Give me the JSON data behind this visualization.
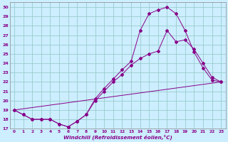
{
  "xlabel": "Windchill (Refroidissement éolien,°C)",
  "background_color": "#cceeff",
  "line_color": "#880088",
  "grid_color": "#99cccc",
  "xlim": [
    -0.5,
    23.5
  ],
  "ylim": [
    17,
    30.5
  ],
  "yticks": [
    17,
    18,
    19,
    20,
    21,
    22,
    23,
    24,
    25,
    26,
    27,
    28,
    29,
    30
  ],
  "xticks": [
    0,
    1,
    2,
    3,
    4,
    5,
    6,
    7,
    8,
    9,
    10,
    11,
    12,
    13,
    14,
    15,
    16,
    17,
    18,
    19,
    20,
    21,
    22,
    23
  ],
  "curve_upper_x": [
    0,
    1,
    2,
    3,
    4,
    5,
    6,
    7,
    8,
    9,
    10,
    11,
    12,
    13,
    14,
    15,
    16,
    17,
    18,
    19,
    20,
    21,
    22,
    23
  ],
  "curve_upper_y": [
    19,
    18.5,
    18,
    18,
    18,
    17.5,
    17.2,
    17.8,
    18.5,
    20.2,
    21.3,
    22.3,
    23.3,
    24.2,
    27.5,
    29.3,
    29.7,
    30,
    29.3,
    27.5,
    25.2,
    23.5,
    22.2,
    22
  ],
  "curve_lower_x": [
    0,
    1,
    2,
    3,
    4,
    5,
    6,
    7,
    8,
    9,
    10,
    11,
    12,
    13,
    14,
    15,
    16,
    17,
    18,
    19,
    20,
    21,
    22,
    23
  ],
  "curve_lower_y": [
    19,
    18.5,
    18,
    18,
    18,
    17.5,
    17.2,
    17.8,
    18.5,
    20.0,
    21.0,
    22.0,
    22.8,
    23.8,
    24.5,
    25.0,
    25.3,
    27.5,
    26.3,
    26.5,
    25.5,
    24.0,
    22.5,
    22
  ],
  "curve_line_x": [
    0,
    23
  ],
  "curve_line_y": [
    19,
    22
  ]
}
